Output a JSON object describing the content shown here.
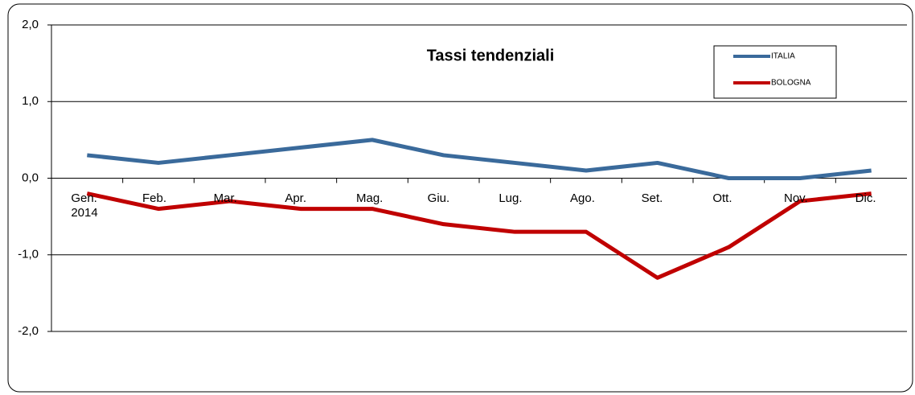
{
  "chart_data": {
    "type": "line",
    "title": "Tassi tendenziali",
    "categories": [
      "Gen.\n2014",
      "Feb.",
      "Mar.",
      "Apr.",
      "Mag.",
      "Giu.",
      "Lug.",
      "Ago.",
      "Set.",
      "Ott.",
      "Nov.",
      "Dic."
    ],
    "series": [
      {
        "name": "ITALIA",
        "color": "#3a6a9b",
        "values": [
          0.3,
          0.2,
          0.3,
          0.4,
          0.5,
          0.3,
          0.2,
          0.1,
          0.2,
          0.0,
          0.0,
          0.1
        ]
      },
      {
        "name": "BOLOGNA",
        "color": "#c00000",
        "values": [
          -0.2,
          -0.4,
          -0.3,
          -0.4,
          -0.4,
          -0.6,
          -0.7,
          -0.7,
          -1.3,
          -0.9,
          -0.3,
          -0.2
        ]
      }
    ],
    "ylim": [
      -2,
      2
    ],
    "yticks": [
      {
        "value": 2,
        "label": "2,0"
      },
      {
        "value": 1,
        "label": "1,0"
      },
      {
        "value": 0,
        "label": "0,0"
      },
      {
        "value": -1,
        "label": "-1,0"
      },
      {
        "value": -2,
        "label": "-2,0"
      }
    ],
    "grid": true,
    "legend": "top-right"
  }
}
